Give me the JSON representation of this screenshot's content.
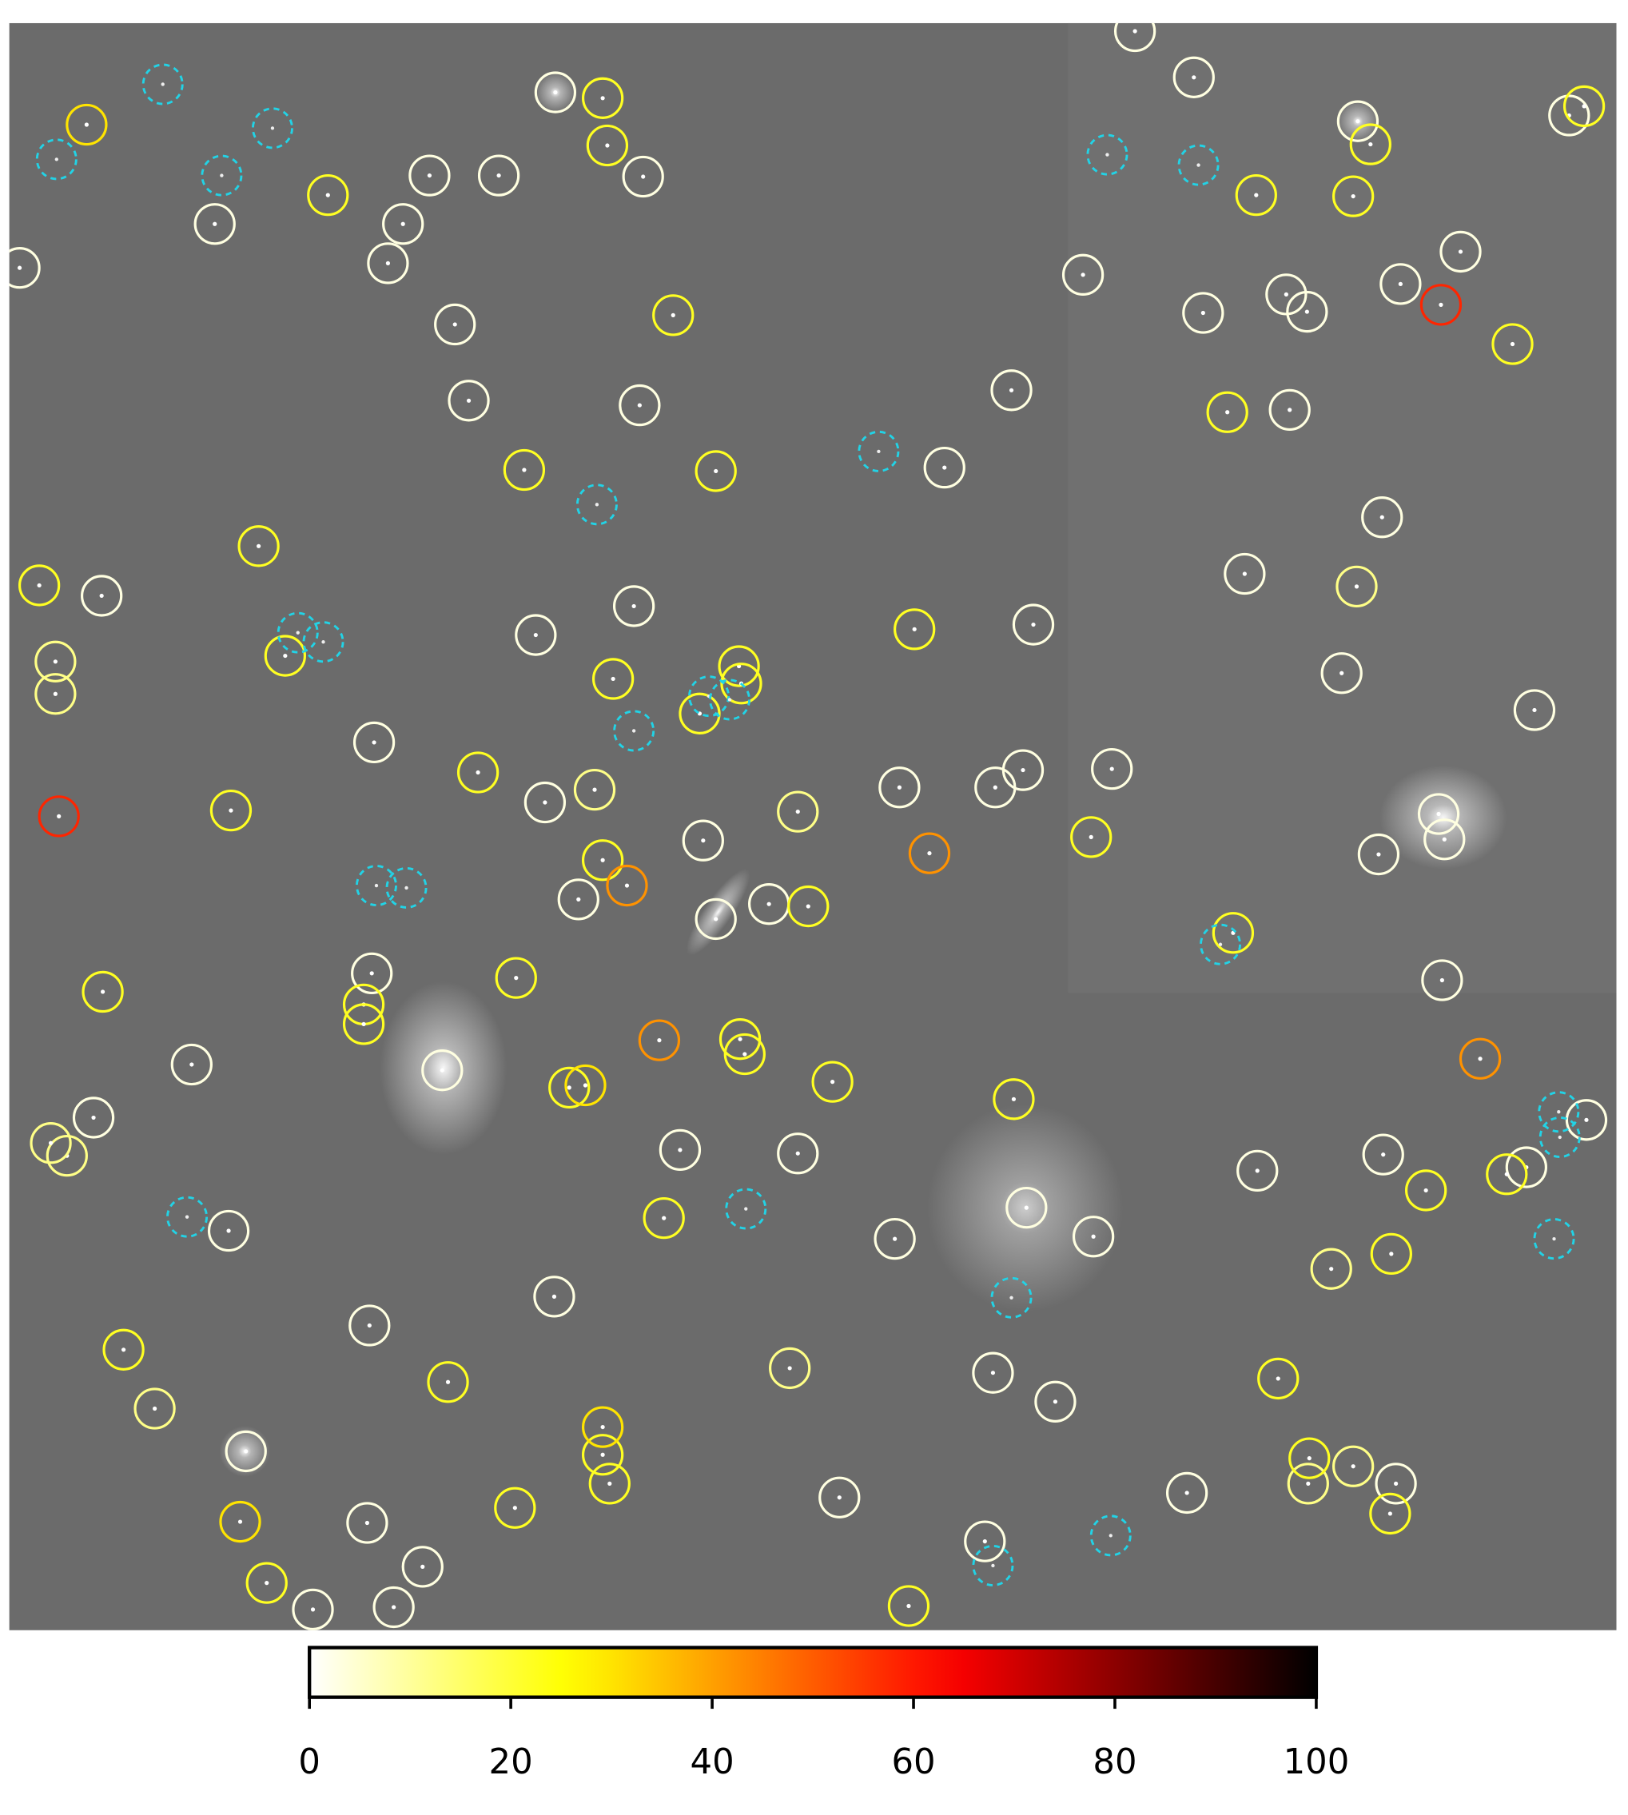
{
  "chart_data": {
    "type": "scatter",
    "origin": "upper",
    "xlim": [
      8,
      1400
    ],
    "ylim": [
      20,
      1412
    ],
    "colormap": "hot_r",
    "clim": [
      0,
      100
    ],
    "cticks": [
      0,
      20,
      40,
      60,
      80,
      100
    ],
    "x": [
      983,
      1034,
      481,
      1176,
      1359,
      557,
      432,
      372,
      186,
      349,
      336,
      17,
      394,
      938,
      1042,
      1114,
      1132,
      1213,
      1265,
      406,
      554,
      876,
      1117,
      818,
      1197,
      1078,
      88,
      549,
      464,
      895,
      1162,
      1329,
      324,
      472,
      779,
      862,
      886,
      963,
      609,
      1194,
      1251,
      1246,
      501,
      666,
      620,
      322,
      1249,
      166,
      81,
      383,
      589,
      691,
      1089,
      1198,
      1322,
      1374,
      198,
      889,
      775,
      947,
      480,
      320,
      213,
      860,
      914,
      727,
      1028,
      1209,
      318,
      366,
      271,
      341,
      853,
      48,
      48,
      58,
      44,
      1175,
      1153,
      1172,
      1133,
      684,
      515,
      691,
      134,
      284,
      522,
      526,
      583,
      454,
      620,
      224,
      34,
      247,
      792,
      531,
      640,
      642,
      606,
      414,
      200,
      522,
      700,
      945,
      1068,
      89,
      315,
      315,
      447,
      641,
      645,
      493,
      721,
      878,
      575,
      107,
      388,
      1107,
      1205,
      1235,
      1305,
      1134,
      1204,
      522,
      528,
      446,
      231,
      787,
      1372,
      1187,
      1088,
      1172,
      1063,
      1310,
      75,
      208,
      507,
      522,
      543,
      571,
      805,
      1282,
      51,
      1248
    ],
    "y": [
      27,
      67,
      80,
      105,
      100,
      153,
      152,
      152,
      194,
      194,
      228,
      232,
      281,
      238,
      271,
      255,
      270,
      246,
      218,
      347,
      351,
      338,
      355,
      405,
      448,
      497,
      516,
      525,
      550,
      541,
      583,
      615,
      643,
      695,
      682,
      682,
      667,
      666,
      728,
      740,
      727,
      705,
      779,
      783,
      796,
      843,
      849,
      922,
      968,
      927,
      996,
      999,
      1014,
      1000,
      1011,
      970,
      1066,
      1046,
      1073,
      1071,
      1123,
      1148,
      1257,
      1189,
      1214,
      1297,
      1293,
      1285,
      1319,
      1357,
      1394,
      1392,
      1335,
      573,
      601,
      1001,
      990,
      508,
      1099,
      1270,
      1285,
      1185,
      684,
      703,
      1220,
      169,
      85,
      126,
      273,
      407,
      408,
      473,
      507,
      568,
      545,
      588,
      577,
      592,
      618,
      669,
      702,
      745,
      785,
      725,
      808,
      859,
      870,
      887,
      847,
      900,
      913,
      942,
      937,
      952,
      1055,
      1169,
      1197,
      1194,
      1086,
      1031,
      1017,
      1263,
      1311,
      1260,
      1285,
      1306,
      1371,
      1391,
      92,
      125,
      169,
      170,
      357,
      298,
      108,
      1318,
      940,
      1236,
      767,
      901,
      739,
      917,
      707,
      264
    ],
    "values": [
      3,
      3,
      3,
      3,
      3,
      3,
      3,
      3,
      3,
      3,
      3,
      3,
      3,
      3,
      3,
      3,
      3,
      3,
      3,
      3,
      3,
      3,
      3,
      3,
      3,
      3,
      3,
      3,
      3,
      3,
      3,
      3,
      3,
      3,
      3,
      3,
      3,
      3,
      3,
      3,
      3,
      3,
      3,
      3,
      3,
      3,
      3,
      3,
      3,
      3,
      3,
      3,
      3,
      3,
      3,
      3,
      3,
      3,
      3,
      3,
      3,
      3,
      3,
      3,
      3,
      3,
      3,
      3,
      3,
      3,
      3,
      3,
      3,
      12,
      12,
      12,
      12,
      12,
      12,
      12,
      12,
      12,
      12,
      12,
      12,
      22,
      22,
      22,
      22,
      22,
      22,
      22,
      22,
      22,
      22,
      22,
      22,
      22,
      22,
      22,
      22,
      22,
      22,
      22,
      22,
      22,
      22,
      22,
      22,
      22,
      22,
      22,
      22,
      22,
      22,
      22,
      22,
      22,
      22,
      22,
      22,
      22,
      22,
      22,
      22,
      22,
      22,
      22,
      22,
      22,
      22,
      22,
      22,
      22,
      30,
      30,
      30,
      30,
      42,
      42,
      42,
      42,
      58,
      58
    ],
    "unmatched": {
      "color": "#22d3e6",
      "x": [
        141,
        49,
        236,
        192,
        959,
        1038,
        761,
        517,
        258,
        280,
        549,
        614,
        632,
        326,
        352,
        1057,
        162,
        646,
        876,
        860,
        962,
        1350,
        1351,
        1346
      ],
      "y": [
        73,
        138,
        111,
        152,
        134,
        143,
        391,
        437,
        548,
        556,
        633,
        603,
        606,
        767,
        769,
        818,
        1054,
        1047,
        1124,
        1356,
        1330,
        963,
        985,
        1073
      ]
    }
  }
}
